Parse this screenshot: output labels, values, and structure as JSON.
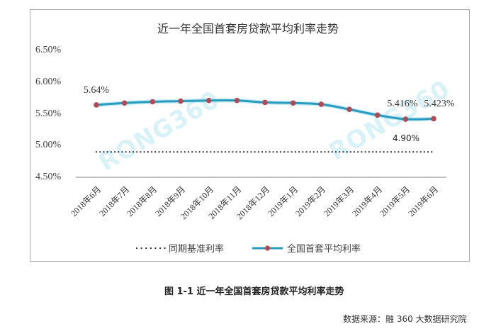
{
  "chart_data": {
    "type": "line",
    "title": "近一年全国首套房贷款平均利率走势",
    "xlabel": "",
    "ylabel": "",
    "categories": [
      "2018年6月",
      "2018年7月",
      "2018年8月",
      "2018年9月",
      "2018年10月",
      "2018年11月",
      "2018年12月",
      "2019年1月",
      "2019年2月",
      "2019年3月",
      "2019年4月",
      "2019年5月",
      "2019年6月"
    ],
    "series": [
      {
        "name": "同期基准利率",
        "style": "dotted",
        "color": "#2b2b3a",
        "values": [
          4.9,
          4.9,
          4.9,
          4.9,
          4.9,
          4.9,
          4.9,
          4.9,
          4.9,
          4.9,
          4.9,
          4.9,
          4.9
        ]
      },
      {
        "name": "全国首套平均利率",
        "style": "line-with-markers",
        "color": "#2a9bbd",
        "marker_color": "#b04a56",
        "values": [
          5.64,
          5.67,
          5.69,
          5.7,
          5.71,
          5.71,
          5.68,
          5.67,
          5.65,
          5.57,
          5.48,
          5.416,
          5.423
        ]
      }
    ],
    "y_ticks": [
      "6.50%",
      "6.00%",
      "5.50%",
      "5.00%",
      "4.50%"
    ],
    "ylim": [
      4.5,
      6.5
    ],
    "grid": false,
    "legend_position": "bottom",
    "annotations": [
      {
        "text": "5.64%",
        "target": "2018年6月"
      },
      {
        "text": "5.416%",
        "target": "2019年5月"
      },
      {
        "text": "5.423%",
        "target": "2019年6月"
      },
      {
        "text": "4.90%",
        "target": "同期基准利率"
      }
    ]
  },
  "legend": {
    "baseline_label": "同期基准利率",
    "average_label": "全国首套平均利率"
  },
  "caption": "图 1-1  近一年全国首套房贷款平均利率走势",
  "source": "数据来源：融 360 大数据研究院",
  "watermark": "RONG360"
}
